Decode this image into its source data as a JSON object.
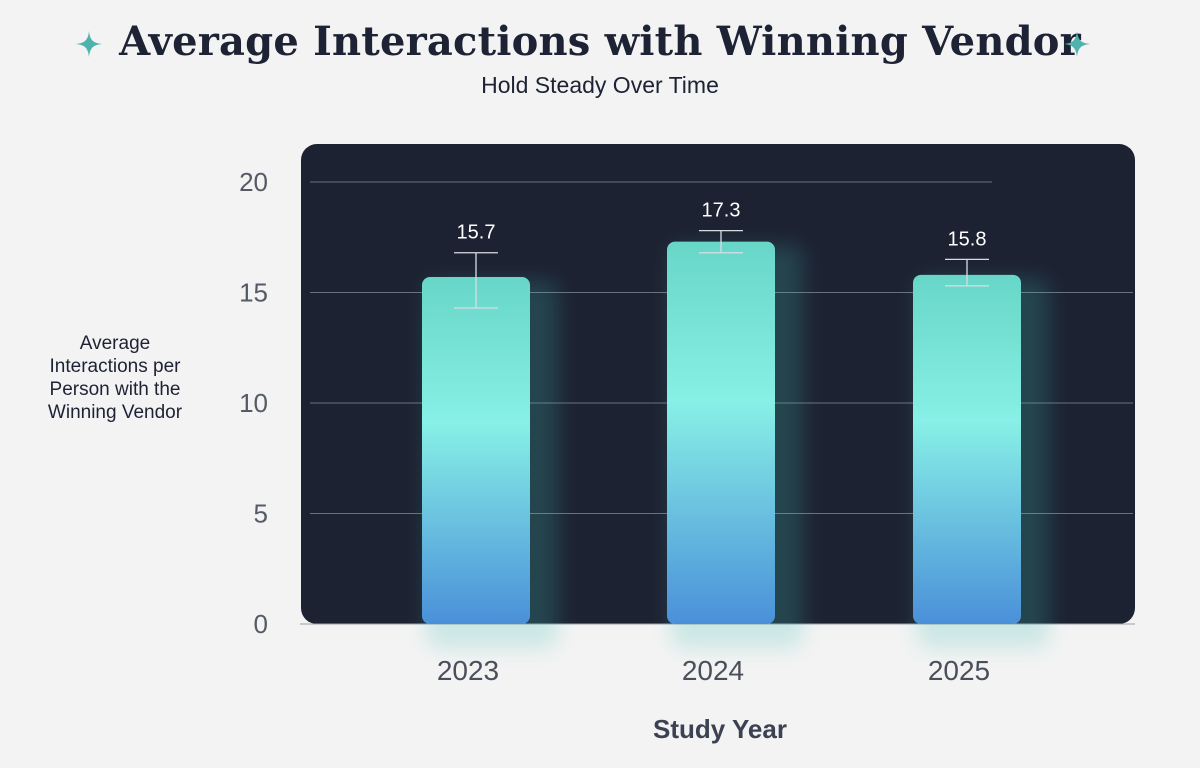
{
  "header": {
    "title": "Average Interactions with Winning Vendor",
    "subtitle": "Hold Steady Over Time"
  },
  "colors": {
    "background": "#f3f3f3",
    "panel": "#1d2232",
    "bar_top": "#67d6c8",
    "bar_mid": "#88f0e6",
    "bar_bottom": "#4a90d9",
    "accent_sparkle": "#4fb3ad",
    "title": "#1d2334"
  },
  "chart_data": {
    "type": "bar",
    "title": "Average Interactions with Winning Vendor",
    "subtitle": "Hold Steady Over Time",
    "categories": [
      "2023",
      "2024",
      "2025"
    ],
    "values": [
      15.7,
      17.3,
      15.8
    ],
    "value_labels": [
      "15.7",
      "17.3",
      "15.8"
    ],
    "error_low": [
      14.3,
      16.8,
      15.3
    ],
    "error_high": [
      16.8,
      17.8,
      16.5
    ],
    "xlabel": "Study Year",
    "ylabel_lines": [
      "Average",
      "Interactions per",
      "Person with the",
      "Winning Vendor"
    ],
    "ylim": [
      0,
      20
    ],
    "yticks": [
      0,
      5,
      10,
      15,
      20
    ],
    "ytick_labels": [
      "0",
      "5",
      "10",
      "15",
      "20"
    ],
    "grid": true
  }
}
